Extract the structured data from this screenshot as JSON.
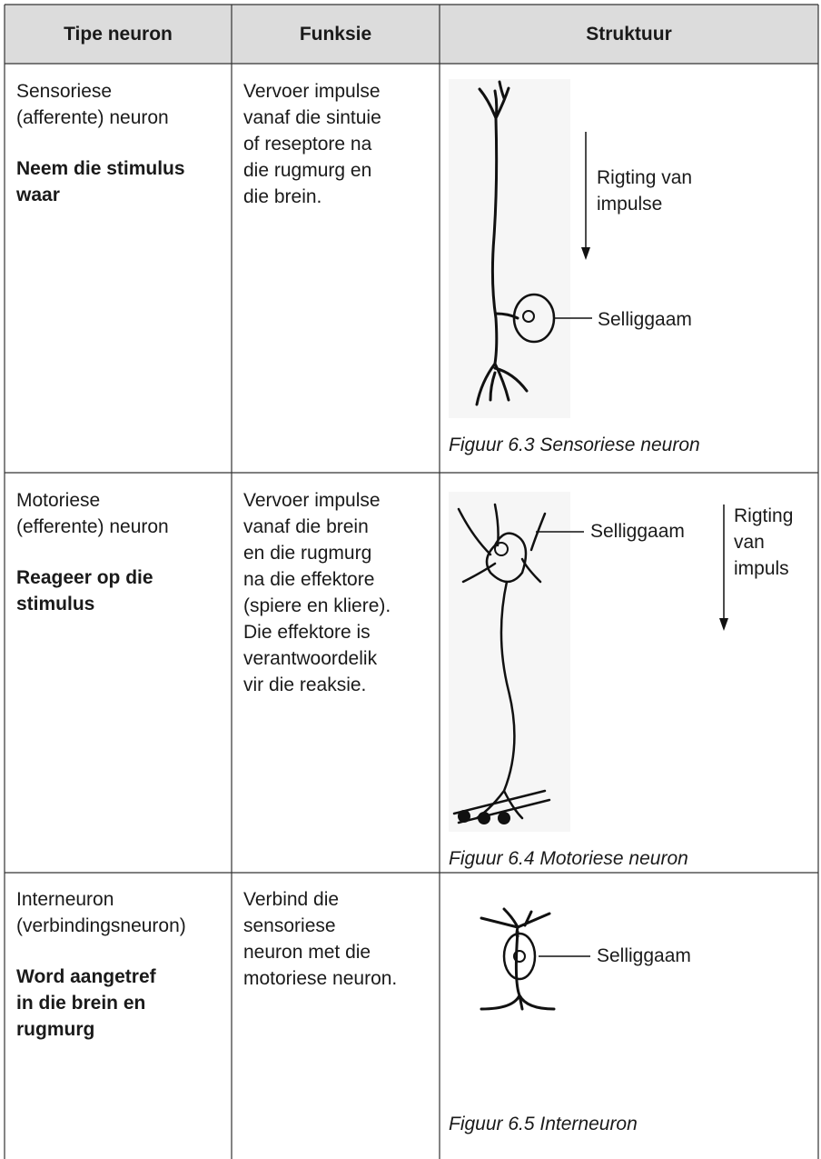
{
  "table": {
    "header": [
      "Tipe neuron",
      "Funksie",
      "Struktuur"
    ],
    "rows": [
      {
        "type": [
          "Sensoriese",
          "(afferente) neuron"
        ],
        "role": [
          "Neem die stimulus",
          "waar"
        ],
        "function": [
          "Vervoer impulse",
          "vanaf die sintuie",
          "of reseptore na",
          "die rugmurg en",
          "die brein."
        ],
        "direction": [
          "Rigting van",
          "impulse"
        ],
        "cell_body": "Selliggaam",
        "caption": "Figuur 6.3 Sensoriese neuron"
      },
      {
        "type": [
          "Motoriese",
          "(efferente) neuron"
        ],
        "role": [
          "Reageer op die",
          "stimulus"
        ],
        "function": [
          "Vervoer impulse",
          "vanaf die brein",
          "en die rugmurg",
          "na die effektore",
          "(spiere en kliere).",
          "Die effektore is",
          "verantwoordelik",
          "vir die reaksie."
        ],
        "direction": [
          "Rigting",
          "van",
          "impuls"
        ],
        "cell_body": "Selliggaam",
        "caption": "Figuur 6.4 Motoriese neuron"
      },
      {
        "type": [
          "Interneuron",
          "(verbindingsneuron)"
        ],
        "role": [
          "Word aangetref",
          "in die brein en",
          "rugmurg"
        ],
        "function": [
          "Verbind die",
          "sensoriese",
          "neuron met die",
          "motoriese neuron."
        ],
        "cell_body": "Selliggaam",
        "caption": "Figuur 6.5 Interneuron"
      }
    ]
  }
}
